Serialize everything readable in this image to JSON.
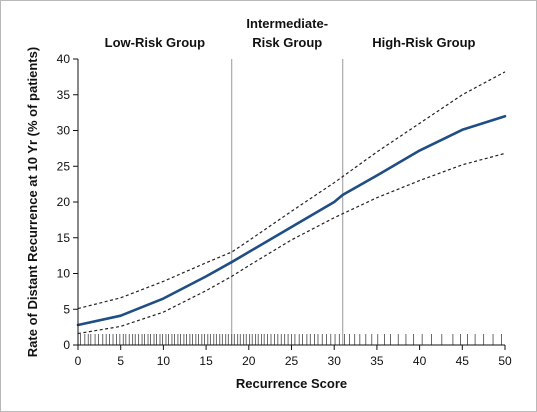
{
  "chart_data": {
    "type": "line",
    "xlabel": "Recurrence Score",
    "ylabel": "Rate of Distant Recurrence at 10 Yr (% of patients)",
    "xlim": [
      0,
      50
    ],
    "ylim": [
      0,
      40
    ],
    "x_ticks": [
      0,
      5,
      10,
      15,
      20,
      25,
      30,
      35,
      40,
      45,
      50
    ],
    "y_ticks": [
      0,
      5,
      10,
      15,
      20,
      25,
      30,
      35,
      40
    ],
    "grid": false,
    "colors": {
      "estimate": "#1f4e84",
      "confidence_band": "#222222",
      "divider": "#9a9a9a"
    },
    "group_dividers": [
      18,
      31
    ],
    "groups": [
      {
        "label": "Low-Risk Group",
        "x_center": 9
      },
      {
        "label": "Intermediate-",
        "label2": "Risk Group",
        "x_center": 24.5
      },
      {
        "label": "High-Risk Group",
        "x_center": 40.5
      }
    ],
    "series": [
      {
        "role": "estimate",
        "x": [
          0,
          5,
          10,
          15,
          18,
          20,
          25,
          30,
          31,
          35,
          40,
          45,
          50
        ],
        "y": [
          2.8,
          4.1,
          6.5,
          9.6,
          11.6,
          13.0,
          16.5,
          20.0,
          21.0,
          23.7,
          27.2,
          30.1,
          32.0
        ]
      },
      {
        "role": "upper_ci",
        "x": [
          0,
          5,
          10,
          15,
          18,
          20,
          25,
          30,
          35,
          40,
          45,
          50
        ],
        "y": [
          5.1,
          6.6,
          8.9,
          11.5,
          13.0,
          14.6,
          18.7,
          22.7,
          27.0,
          31.0,
          35.0,
          38.2
        ]
      },
      {
        "role": "lower_ci",
        "x": [
          0,
          5,
          10,
          15,
          18,
          20,
          25,
          30,
          35,
          40,
          45,
          50
        ],
        "y": [
          1.6,
          2.6,
          4.6,
          7.6,
          9.6,
          11.1,
          14.7,
          17.8,
          20.6,
          23.0,
          25.2,
          26.8
        ]
      }
    ],
    "rug_x": [
      0.3,
      0.8,
      1.2,
      1.5,
      2.0,
      2.4,
      2.9,
      3.3,
      3.7,
      4.1,
      4.5,
      4.9,
      5.3,
      5.6,
      6.0,
      6.4,
      6.7,
      7.1,
      7.5,
      7.8,
      8.2,
      8.5,
      8.9,
      9.2,
      9.6,
      9.9,
      10.3,
      10.6,
      11.0,
      11.3,
      11.7,
      12.0,
      12.4,
      12.7,
      13.1,
      13.4,
      13.8,
      14.1,
      14.5,
      14.8,
      15.2,
      15.5,
      15.9,
      16.2,
      16.6,
      16.9,
      17.3,
      17.6,
      18.0,
      18.3,
      18.7,
      19.0,
      19.4,
      19.7,
      20.1,
      20.4,
      20.8,
      21.1,
      21.5,
      21.8,
      22.2,
      22.6,
      23.0,
      23.4,
      23.8,
      24.2,
      24.6,
      25.0,
      25.4,
      25.9,
      26.3,
      26.8,
      27.2,
      27.7,
      28.1,
      28.6,
      29.1,
      29.6,
      30.1,
      30.6,
      31.2,
      31.8,
      32.4,
      33.0,
      33.7,
      34.4,
      35.1,
      35.9,
      36.6,
      37.5,
      38.4,
      39.3,
      40.3,
      41.4,
      42.6,
      43.9,
      44.8,
      45.6,
      46.5,
      47.5,
      48.6,
      49.6
    ]
  }
}
